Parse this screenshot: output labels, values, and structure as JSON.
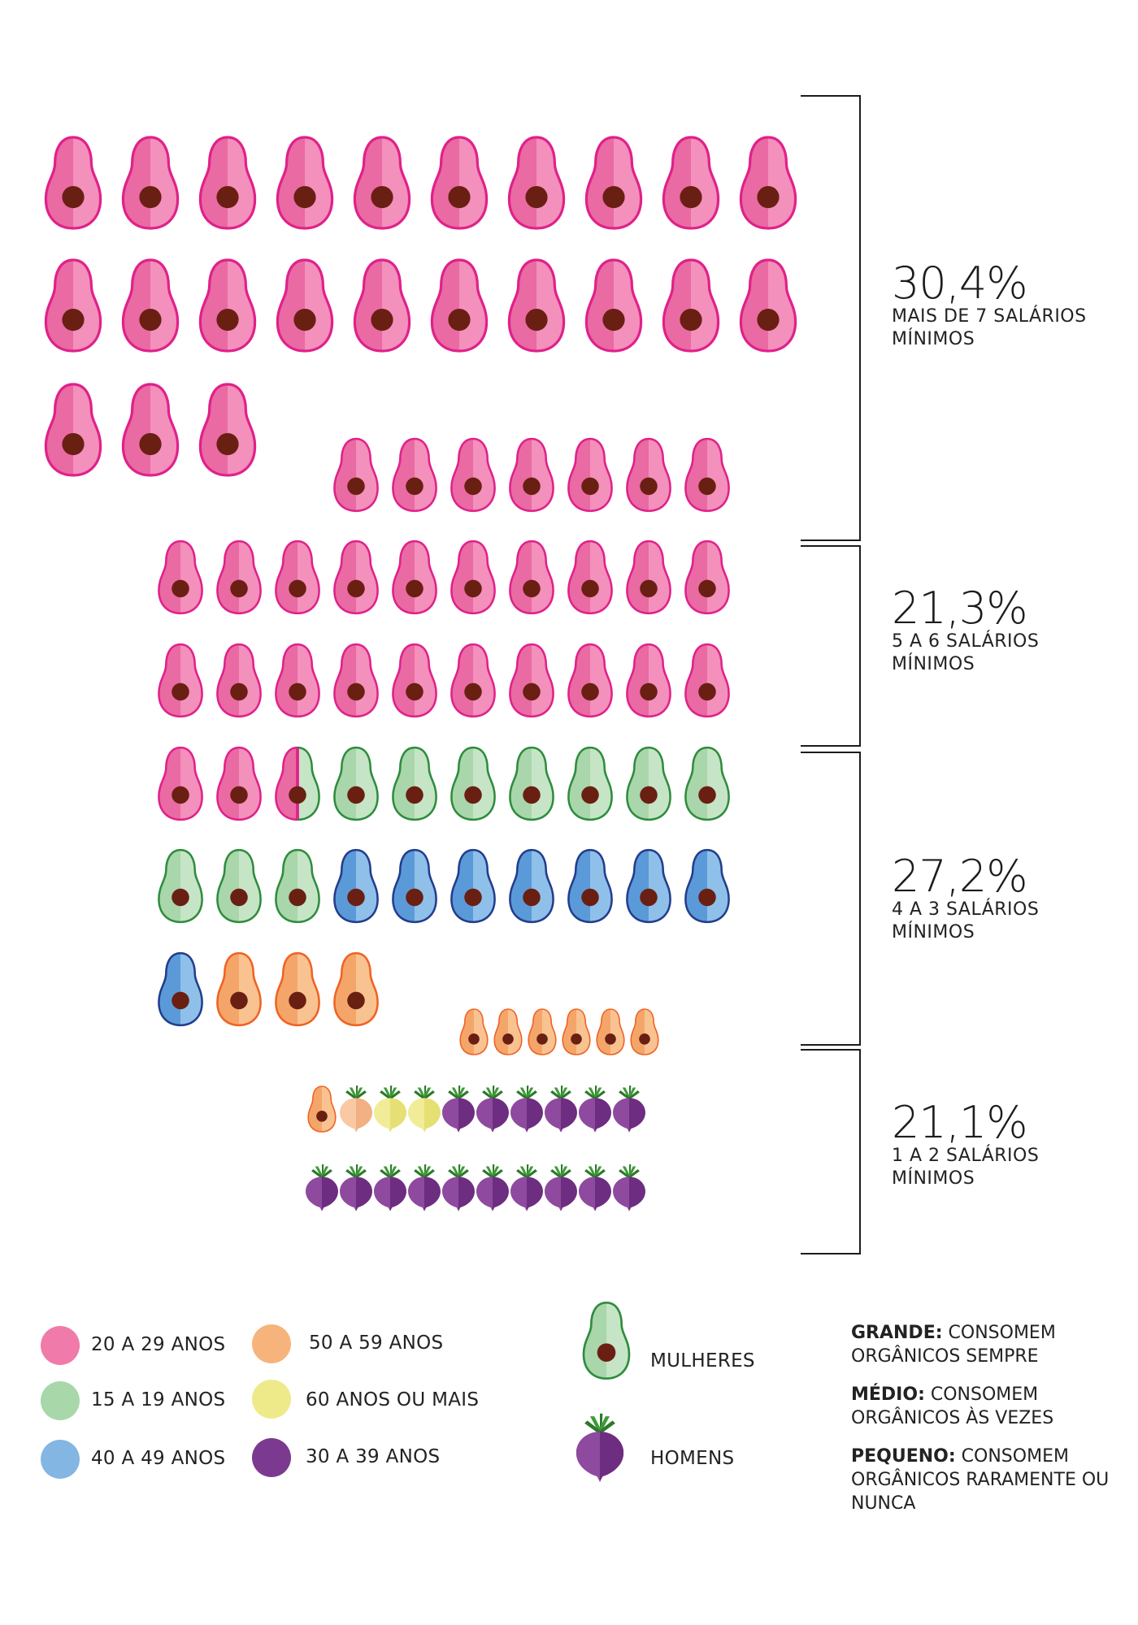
{
  "chart_data": {
    "type": "pictogram",
    "groups": [
      {
        "percent_label": "30,4%",
        "label": "MAIS DE 7 SALÁRIOS MÍNIMOS",
        "rows": [
          {
            "size": "large",
            "icons": [
              "20-29",
              "20-29",
              "20-29",
              "20-29",
              "20-29",
              "20-29",
              "20-29",
              "20-29",
              "20-29",
              "20-29"
            ]
          },
          {
            "size": "large",
            "icons": [
              "20-29",
              "20-29",
              "20-29",
              "20-29",
              "20-29",
              "20-29",
              "20-29",
              "20-29",
              "20-29",
              "20-29"
            ]
          },
          {
            "size": "large",
            "icons": [
              "20-29",
              "20-29",
              "20-29"
            ]
          },
          {
            "size": "medium",
            "icons": [
              "20-29",
              "20-29",
              "20-29",
              "20-29",
              "20-29",
              "20-29",
              "20-29"
            ]
          }
        ]
      },
      {
        "percent_label": "21,3%",
        "label": "5 A 6 SALÁRIOS MÍNIMOS",
        "rows": [
          {
            "size": "medium",
            "icons": [
              "20-29",
              "20-29",
              "20-29",
              "20-29",
              "20-29",
              "20-29",
              "20-29",
              "20-29",
              "20-29",
              "20-29"
            ]
          },
          {
            "size": "medium",
            "icons": [
              "20-29",
              "20-29",
              "20-29",
              "20-29",
              "20-29",
              "20-29",
              "20-29",
              "20-29",
              "20-29",
              "20-29"
            ]
          }
        ]
      },
      {
        "percent_label": "27,2%",
        "label": "4 A 3 SALÁRIOS MÍNIMOS",
        "rows": [
          {
            "size": "medium",
            "icons": [
              "20-29",
              "20-29",
              "20-29|15-19",
              "15-19",
              "15-19",
              "15-19",
              "15-19",
              "15-19",
              "15-19",
              "15-19"
            ]
          },
          {
            "size": "medium",
            "icons": [
              "15-19",
              "15-19",
              "15-19",
              "40-49",
              "40-49",
              "40-49",
              "40-49",
              "40-49",
              "40-49",
              "40-49"
            ]
          },
          {
            "size": "medium",
            "icons": [
              "40-49",
              "50-59",
              "50-59",
              "50-59"
            ]
          },
          {
            "size": "small",
            "icons": [
              "50-59",
              "50-59",
              "50-59",
              "50-59",
              "50-59",
              "50-59"
            ]
          }
        ]
      },
      {
        "percent_label": "21,1%",
        "label": "1 A 2 SALÁRIOS MÍNIMOS",
        "rows": [
          {
            "size": "small",
            "icons": [
              "50-59",
              "m:50-59",
              "m:60+",
              "m:60+",
              "m:30-39",
              "m:30-39",
              "m:30-39",
              "m:30-39",
              "m:30-39",
              "m:30-39"
            ]
          },
          {
            "size": "small",
            "icons": [
              "m:30-39",
              "m:30-39",
              "m:30-39",
              "m:30-39",
              "m:30-39",
              "m:30-39",
              "m:30-39",
              "m:30-39",
              "m:30-39",
              "m:30-39"
            ]
          }
        ]
      }
    ]
  },
  "age_legend": [
    {
      "key": "20-29",
      "label": "20 A 29 ANOS",
      "color": "#f07aaa"
    },
    {
      "key": "15-19",
      "label": "15 A 19 ANOS",
      "color": "#a8d7aa"
    },
    {
      "key": "40-49",
      "label": "40 A 49 ANOS",
      "color": "#84b6e3"
    },
    {
      "key": "50-59",
      "label": "50 A 59 ANOS",
      "color": "#f6b47c"
    },
    {
      "key": "60+",
      "label": "60 ANOS OU MAIS",
      "color": "#eeea8a"
    },
    {
      "key": "30-39",
      "label": "30 A 39 ANOS",
      "color": "#7b3a8f"
    }
  ],
  "gender_legend": {
    "women": "MULHERES",
    "men": "HOMENS"
  },
  "size_legend": [
    {
      "term": "GRANDE:",
      "text": "CONSOMEM ORGÂNICOS SEMPRE"
    },
    {
      "term": "MÉDIO:",
      "text": "CONSOMEM ORGÂNICOS ÀS VEZES"
    },
    {
      "term": "PEQUENO:",
      "text": "CONSOMEM ORGÂNICOS RARAMENTE OU NUNCA"
    }
  ],
  "colors": {
    "20-29": {
      "light": "#f390bb",
      "dark": "#ea6aa3",
      "stroke": "#e0218a"
    },
    "15-19": {
      "light": "#c6e5c6",
      "dark": "#a9d6ab",
      "stroke": "#2f8c3e"
    },
    "40-49": {
      "light": "#8fc0ea",
      "dark": "#5b9ad8",
      "stroke": "#233d8c"
    },
    "50-59": {
      "light": "#f9c391",
      "dark": "#f4a66a",
      "stroke": "#f06224"
    },
    "pit": "#6a1f13",
    "beet_30-39_light": "#8e4a9e",
    "beet_30-39_dark": "#6d2d80",
    "beet_60+_light": "#f1ec97",
    "beet_60+_dark": "#e6df73",
    "beet_50-59_light": "#f9c9a3",
    "beet_50-59_dark": "#f2b083",
    "leaf": "#3f9a38",
    "leaf_dark": "#2c7a2a"
  }
}
